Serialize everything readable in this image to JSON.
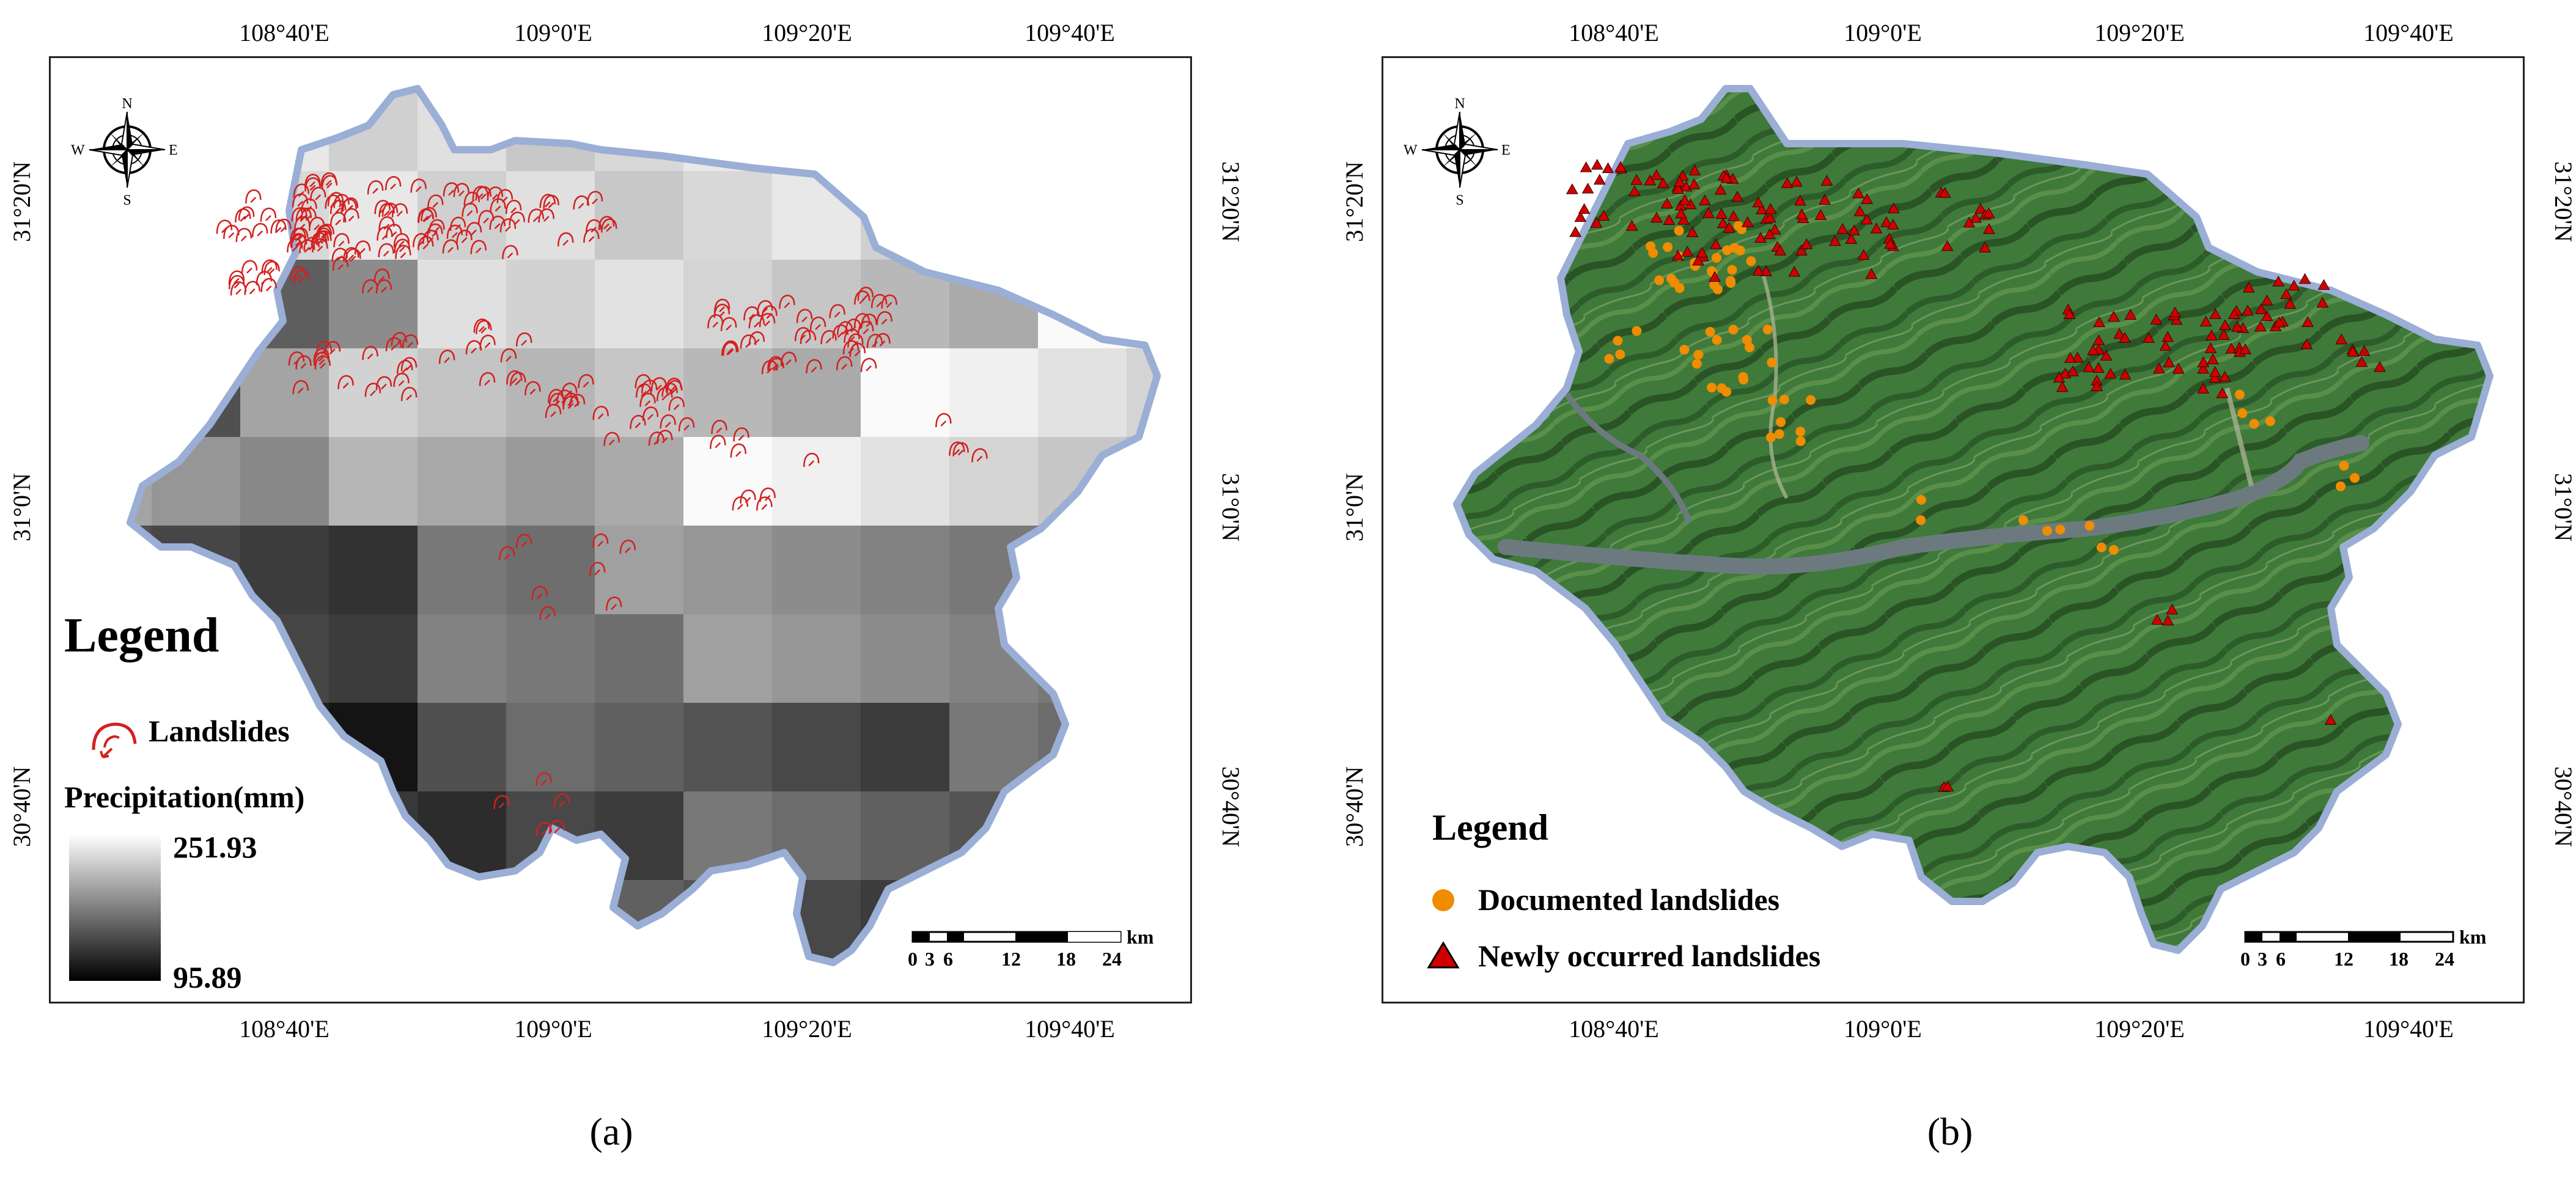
{
  "panel_a": {
    "caption": "(a)",
    "legend": {
      "title": "Legend",
      "landslides_label": "Landslides",
      "precip_label": "Precipitation(mm)",
      "precip_max": "251.93",
      "precip_min": "95.89"
    },
    "lon_ticks": [
      "108°40'E",
      "109°0'E",
      "109°20'E",
      "109°40'E"
    ],
    "lat_ticks": [
      "31°20'N",
      "31°0'N",
      "30°40'N"
    ],
    "scale": {
      "unit": "km",
      "labels": [
        "0",
        "3",
        "6",
        "12",
        "18",
        "24"
      ]
    },
    "compass": {
      "n": "N",
      "s": "S",
      "e": "E",
      "w": "W"
    }
  },
  "panel_b": {
    "caption": "(b)",
    "legend": {
      "title": "Legend",
      "documented_label": "Documented landslides",
      "new_label": "Newly occurred landslides"
    },
    "lon_ticks": [
      "108°40'E",
      "109°0'E",
      "109°20'E",
      "109°40'E"
    ],
    "lat_ticks": [
      "31°20'N",
      "31°0'N",
      "30°40'N"
    ],
    "scale": {
      "unit": "km",
      "labels": [
        "0",
        "3",
        "6",
        "12",
        "18",
        "24"
      ]
    },
    "compass": {
      "n": "N",
      "s": "S",
      "e": "E",
      "w": "W"
    }
  },
  "colors": {
    "landslide_red": "#d42020",
    "documented_orange": "#f08c00",
    "triangle_red": "#d00000",
    "boundary_blue": "#9aaed6",
    "river": "#6c7a80"
  }
}
